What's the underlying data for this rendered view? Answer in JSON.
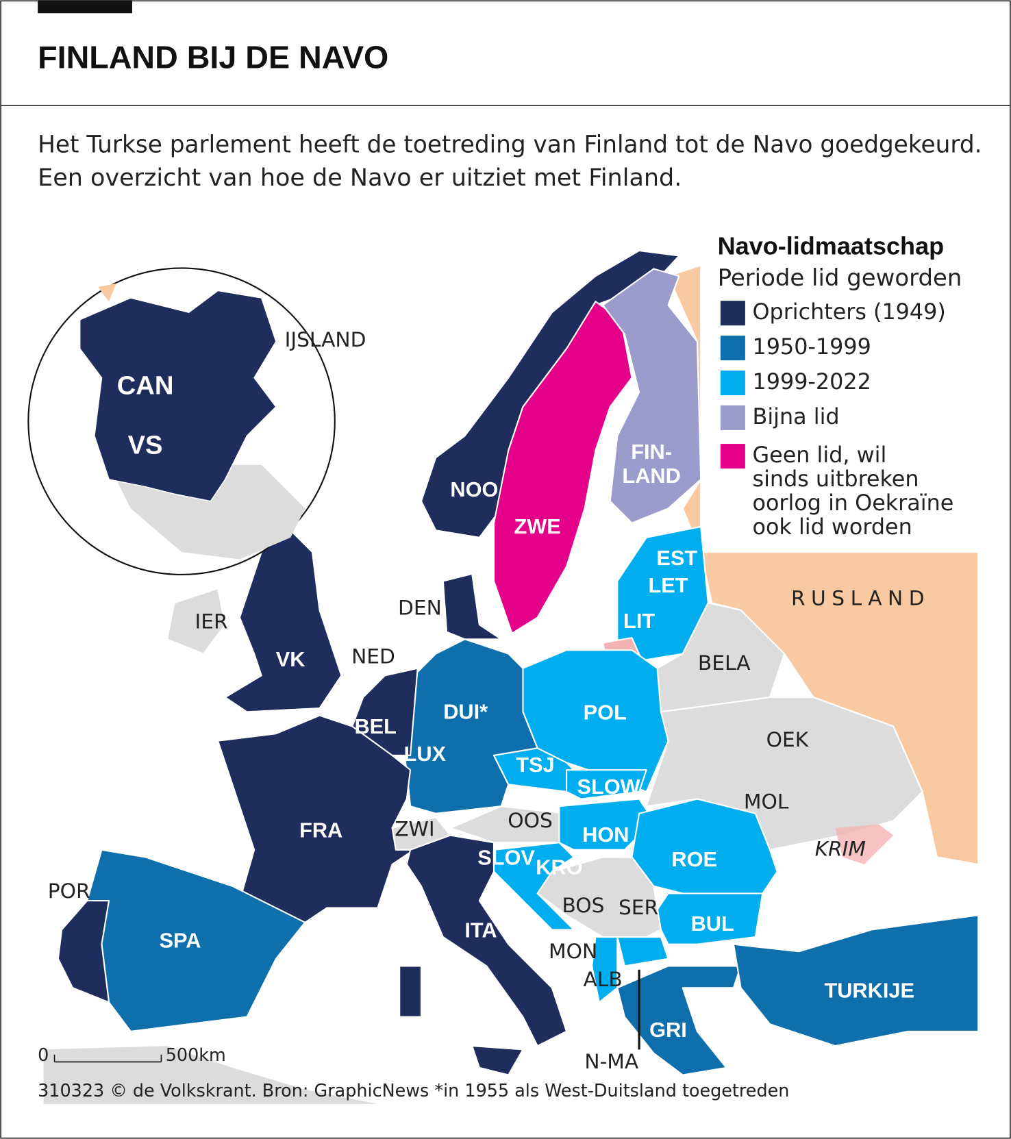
{
  "header": {
    "title": "FINLAND BIJ DE NAVO",
    "intro": [
      "Het Turkse parlement heeft de toetreding van Finland tot de Navo goedgekeurd.",
      "Een overzicht van hoe de Navo er uitziet met Finland."
    ]
  },
  "legend": {
    "title": "Navo-lidmaatschap",
    "subtitle": "Periode lid geworden",
    "items": [
      {
        "label": [
          "Oprichters (1949)"
        ],
        "color": "#1f2d5c"
      },
      {
        "label": [
          "1950-1999"
        ],
        "color": "#0f6fad"
      },
      {
        "label": [
          "1999-2022"
        ],
        "color": "#00aeef"
      },
      {
        "label": [
          "Bijna lid"
        ],
        "color": "#9b9bcc"
      },
      {
        "label": [
          "Geen lid, wil",
          "sinds uitbreken",
          "oorlog in Oekraïne",
          "ook lid worden"
        ],
        "color": "#e5008a"
      }
    ]
  },
  "map": {
    "member_labels": [
      "CAN",
      "VS",
      "NOO",
      "ZWE",
      "FIN-",
      "LAND",
      "EST",
      "LET",
      "LIT",
      "VK",
      "DUI*",
      "POL",
      "BEL",
      "LUX",
      "TSJ",
      "SLOW",
      "FRA",
      "HON",
      "ROE",
      "SLOV",
      "KRO",
      "BUL",
      "SPA",
      "ITA",
      "TURKIJE",
      "GRI"
    ],
    "other_labels": [
      "IJSLAND",
      "RUSLAND",
      "DEN",
      "IER",
      "NED",
      "BELA",
      "OEK",
      "MOL",
      "OOS",
      "ZWI",
      "KRIM",
      "POR",
      "BOS",
      "SER",
      "MON",
      "ALB",
      "N-MA"
    ],
    "scale": [
      "0",
      "500km"
    ]
  },
  "footer": "310323 © de Volkskrant. Bron: GraphicNews *in 1955 als West-Duitsland toegetreden"
}
